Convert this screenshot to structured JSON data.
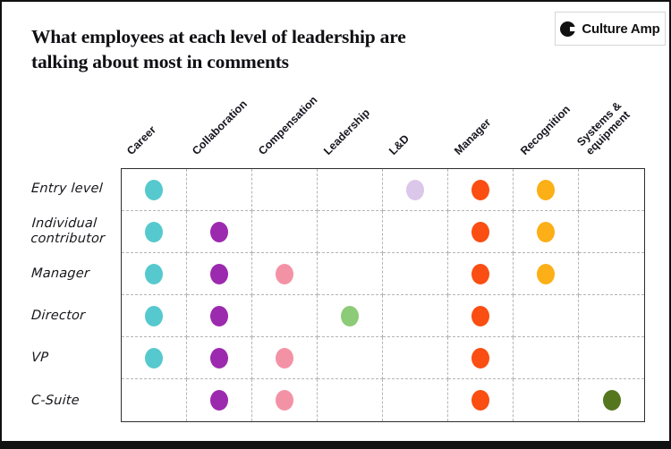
{
  "page": {
    "title_line1": "What employees at each level of leadership are",
    "title_line2": "talking about most in comments",
    "logo_text": "Culture Amp"
  },
  "chart_data": {
    "type": "heatmap",
    "title": "What employees at each level of leadership are talking about most in comments",
    "rows": [
      "Entry level",
      "Individual contributor",
      "Manager",
      "Director",
      "VP",
      "C-Suite"
    ],
    "columns": [
      "Career",
      "Collaboration",
      "Compensation",
      "Leadership",
      "L&D",
      "Manager",
      "Recognition",
      "Systems & equipment"
    ],
    "column_colors": [
      "#56C9CE",
      "#9C2AAE",
      "#F492A5",
      "#8CCB77",
      "#DBC7E9",
      "#FA4E12",
      "#FCAF17",
      "#55761F"
    ],
    "cells": [
      [
        1,
        0,
        0,
        0,
        1,
        1,
        1,
        0
      ],
      [
        1,
        1,
        0,
        0,
        0,
        1,
        1,
        0
      ],
      [
        1,
        1,
        1,
        0,
        0,
        1,
        1,
        0
      ],
      [
        1,
        1,
        0,
        1,
        0,
        1,
        0,
        0
      ],
      [
        1,
        1,
        1,
        0,
        0,
        1,
        0,
        0
      ],
      [
        0,
        1,
        1,
        0,
        0,
        1,
        0,
        1
      ]
    ],
    "grid": "dashed",
    "legend_position": "none",
    "dot_meaning": "topic is among the most talked about for that leadership level"
  }
}
